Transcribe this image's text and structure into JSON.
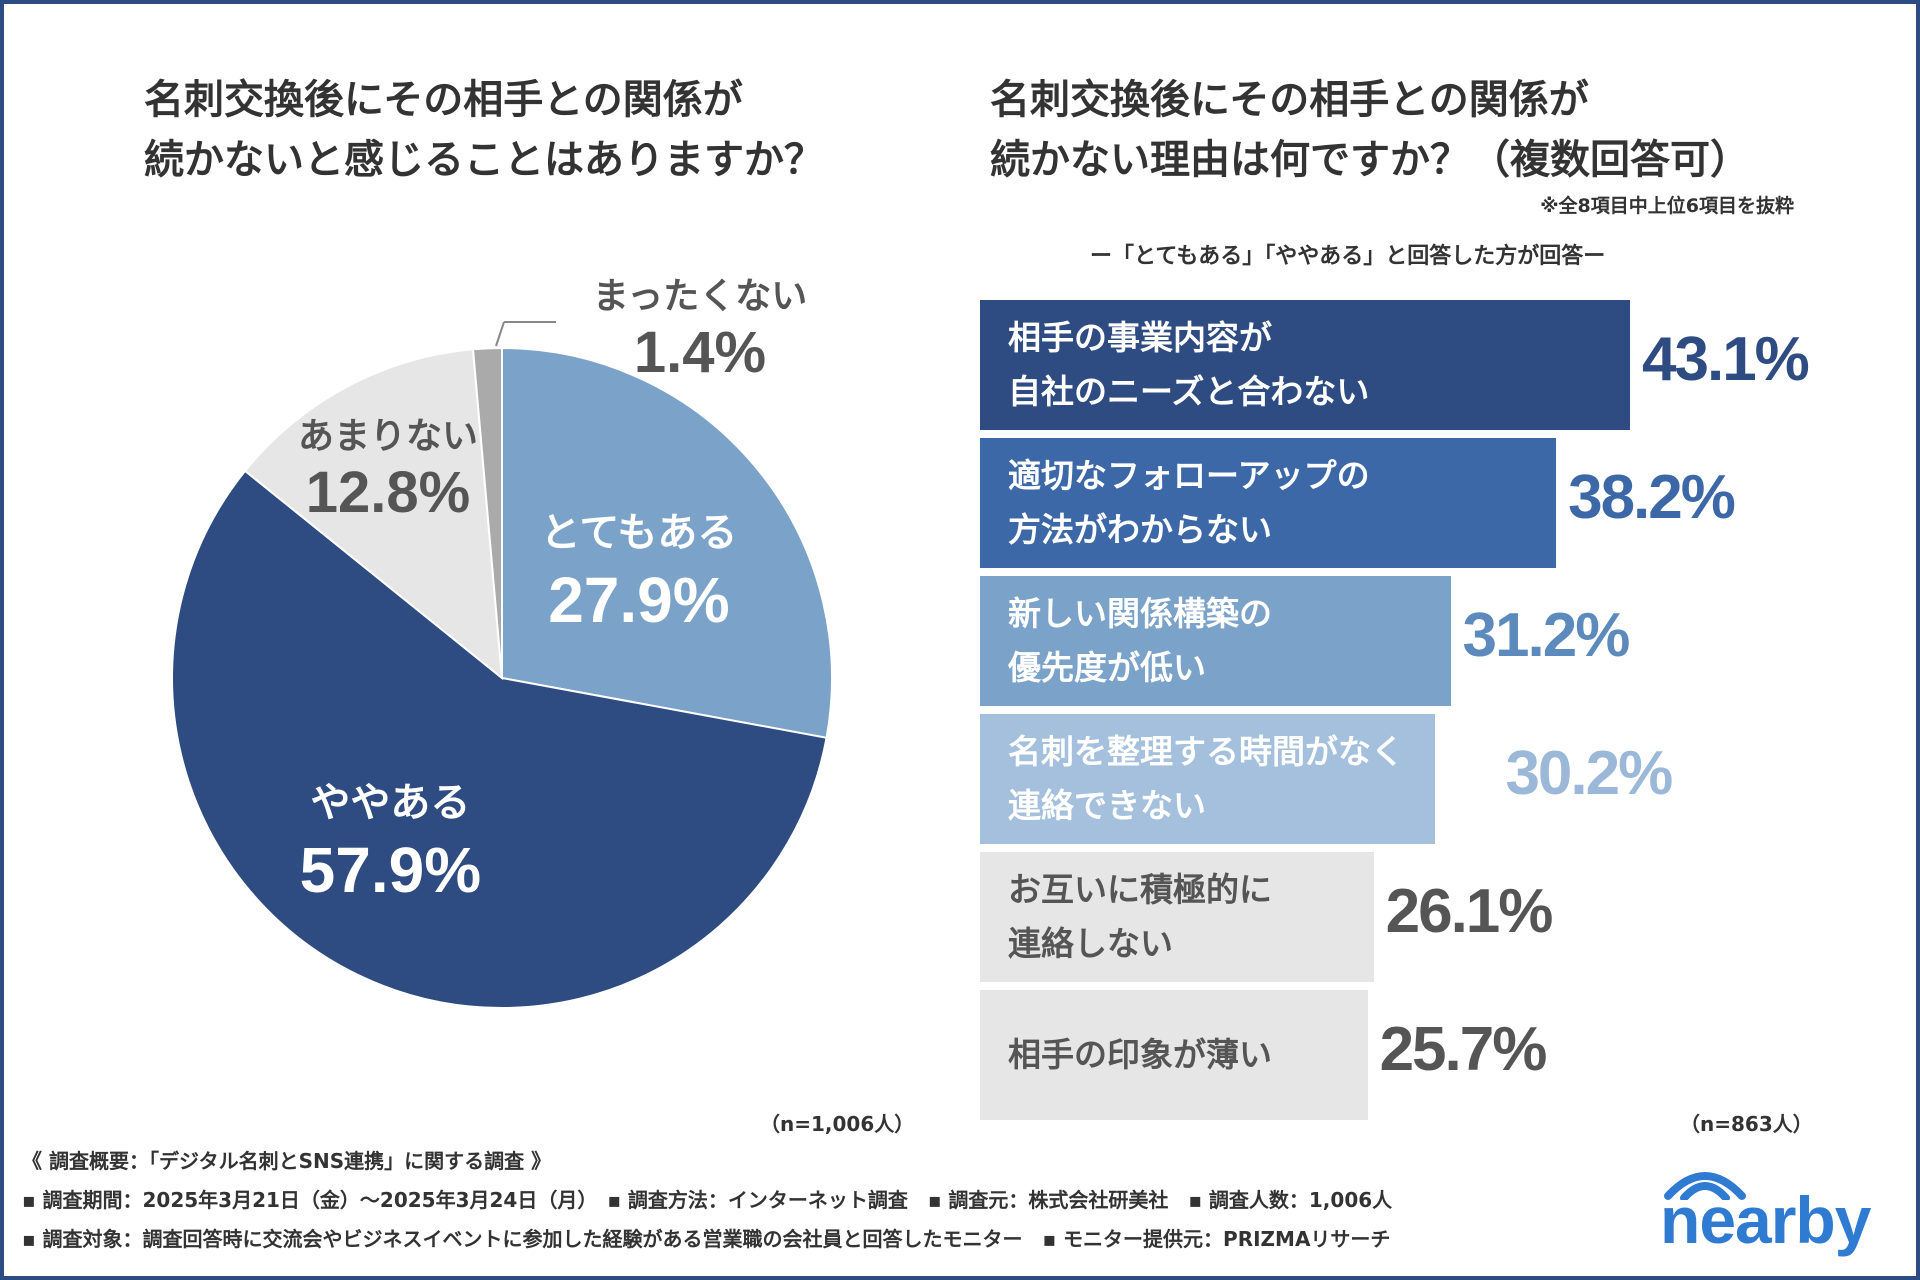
{
  "chart_data": [
    {
      "type": "pie",
      "title": "名刺交換後にその相手との関係が続かないと感じることはありますか？",
      "title_lines": [
        "名刺交換後にその相手との関係が",
        "続かないと感じることはありますか？"
      ],
      "slices": [
        {
          "label": "とてもある",
          "value": 27.9,
          "display": "27.9%",
          "color": "#7ba2c8",
          "text_color": "#ffffff"
        },
        {
          "label": "ややある",
          "value": 57.9,
          "display": "57.9%",
          "color": "#2e4b82",
          "text_color": "#ffffff"
        },
        {
          "label": "あまりない",
          "value": 12.8,
          "display": "12.8%",
          "color": "#e6e6e6",
          "text_color": "#555555"
        },
        {
          "label": "まったくない",
          "value": 1.4,
          "display": "1.4%",
          "color": "#aaaaaa",
          "text_color": "#555555"
        }
      ],
      "sample": "（n=1,006人）"
    },
    {
      "type": "bar",
      "orientation": "horizontal",
      "title": "名刺交換後にその相手との関係が続かない理由は何ですか？（複数回答可）",
      "title_lines": [
        "名刺交換後にその相手との関係が",
        "続かない理由は何ですか？（複数回答可）"
      ],
      "note": "※全8項目中上位6項目を抜粋",
      "subtitle": "ー「とてもある」「ややある」と回答した方が回答ー",
      "xlim": [
        0,
        50
      ],
      "bars": [
        {
          "lines": [
            "相手の事業内容が",
            "自社のニーズと合わない"
          ],
          "value": 43.1,
          "display": "43.1%",
          "color": "#2e4b82",
          "text_color": "#ffffff",
          "value_color": "#2e4b82"
        },
        {
          "lines": [
            "適切なフォローアップの",
            "方法がわからない"
          ],
          "value": 38.2,
          "display": "38.2%",
          "color": "#3d68a8",
          "text_color": "#ffffff",
          "value_color": "#3d68a8"
        },
        {
          "lines": [
            "新しい関係構築の",
            "優先度が低い"
          ],
          "value": 31.2,
          "display": "31.2%",
          "color": "#7ba2c8",
          "text_color": "#ffffff",
          "value_color": "#5d8abd"
        },
        {
          "lines": [
            "名刺を整理する時間がなく",
            "連絡できない"
          ],
          "value": 30.2,
          "display": "30.2%",
          "color": "#a5c0dd",
          "text_color": "#ffffff",
          "value_color": "#9bb8d8"
        },
        {
          "lines": [
            "お互いに積極的に",
            "連絡しない"
          ],
          "value": 26.1,
          "display": "26.1%",
          "color": "#e6e6e6",
          "text_color": "#555555",
          "value_color": "#555555"
        },
        {
          "lines": [
            "相手の印象が薄い"
          ],
          "value": 25.7,
          "display": "25.7%",
          "color": "#e6e6e6",
          "text_color": "#555555",
          "value_color": "#555555"
        }
      ],
      "sample": "（n=863人）"
    }
  ],
  "footer": {
    "line1": "《 調査概要：「デジタル名刺とSNS連携」に関する調査 》",
    "line2": "▪ 調査期間：2025年3月21日（金）〜2025年3月24日（月）　▪ 調査方法：インターネット調査　▪ 調査元：株式会社研美社　▪ 調査人数：1,006人",
    "line3": "▪ 調査対象：調査回答時に交流会やビジネスイベントに参加した経験がある営業職の会社員と回答したモニター　▪ モニター提供元：PRIZMAリサーチ"
  },
  "logo": {
    "text": "nearby",
    "color": "#2f7bd1"
  }
}
